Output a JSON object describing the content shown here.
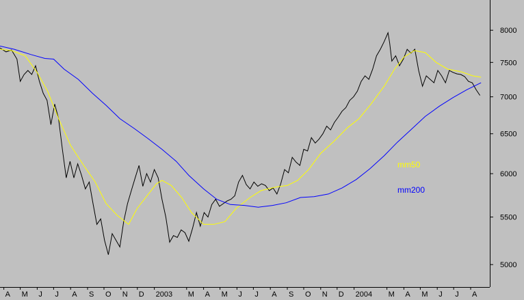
{
  "chart_data": {
    "type": "line",
    "title": "",
    "xlabel": "",
    "ylabel": "",
    "y_scale": "log",
    "ylim": [
      4780,
      8500
    ],
    "grid": false,
    "x_range": [
      "2002-03-25",
      "2004-09-05"
    ],
    "x_tick_labels": [
      {
        "label": "A",
        "date": "2002-04-01"
      },
      {
        "label": "M",
        "date": "2002-05-01"
      },
      {
        "label": "J",
        "date": "2002-06-01"
      },
      {
        "label": "J",
        "date": "2002-07-01"
      },
      {
        "label": "A",
        "date": "2002-08-01"
      },
      {
        "label": "S",
        "date": "2002-09-01"
      },
      {
        "label": "O",
        "date": "2002-10-01"
      },
      {
        "label": "N",
        "date": "2002-11-01"
      },
      {
        "label": "D",
        "date": "2002-12-01"
      },
      {
        "label": "2003",
        "date": "2003-01-01"
      },
      {
        "label": "M",
        "date": "2003-03-01"
      },
      {
        "label": "A",
        "date": "2003-04-01"
      },
      {
        "label": "M",
        "date": "2003-05-01"
      },
      {
        "label": "J",
        "date": "2003-06-01"
      },
      {
        "label": "J",
        "date": "2003-07-01"
      },
      {
        "label": "A",
        "date": "2003-08-01"
      },
      {
        "label": "S",
        "date": "2003-09-01"
      },
      {
        "label": "O",
        "date": "2003-10-01"
      },
      {
        "label": "N",
        "date": "2003-11-01"
      },
      {
        "label": "D",
        "date": "2003-12-01"
      },
      {
        "label": "2004",
        "date": "2004-01-01"
      },
      {
        "label": "M",
        "date": "2004-03-01"
      },
      {
        "label": "A",
        "date": "2004-04-01"
      },
      {
        "label": "M",
        "date": "2004-05-01"
      },
      {
        "label": "J",
        "date": "2004-06-01"
      },
      {
        "label": "J",
        "date": "2004-07-01"
      },
      {
        "label": "A",
        "date": "2004-08-01"
      }
    ],
    "y_ticks": [
      5000,
      5500,
      6000,
      6500,
      7000,
      7500,
      8000
    ],
    "series": [
      {
        "name": "",
        "color": "#000000",
        "points": [
          [
            "2002-03-25",
            7720
          ],
          [
            "2002-04-05",
            7660
          ],
          [
            "2002-04-15",
            7690
          ],
          [
            "2002-04-25",
            7550
          ],
          [
            "2002-05-01",
            7220
          ],
          [
            "2002-05-08",
            7320
          ],
          [
            "2002-05-15",
            7380
          ],
          [
            "2002-05-22",
            7320
          ],
          [
            "2002-05-29",
            7450
          ],
          [
            "2002-06-05",
            7220
          ],
          [
            "2002-06-12",
            7050
          ],
          [
            "2002-06-19",
            6950
          ],
          [
            "2002-06-26",
            6620
          ],
          [
            "2002-07-03",
            6900
          ],
          [
            "2002-07-10",
            6700
          ],
          [
            "2002-07-17",
            6300
          ],
          [
            "2002-07-24",
            5950
          ],
          [
            "2002-07-31",
            6150
          ],
          [
            "2002-08-07",
            5950
          ],
          [
            "2002-08-14",
            6120
          ],
          [
            "2002-08-21",
            5980
          ],
          [
            "2002-08-28",
            5820
          ],
          [
            "2002-09-04",
            5900
          ],
          [
            "2002-09-11",
            5650
          ],
          [
            "2002-09-18",
            5420
          ],
          [
            "2002-09-25",
            5480
          ],
          [
            "2002-10-02",
            5250
          ],
          [
            "2002-10-09",
            5100
          ],
          [
            "2002-10-16",
            5320
          ],
          [
            "2002-10-23",
            5250
          ],
          [
            "2002-10-30",
            5180
          ],
          [
            "2002-11-06",
            5450
          ],
          [
            "2002-11-13",
            5650
          ],
          [
            "2002-11-20",
            5800
          ],
          [
            "2002-11-27",
            5950
          ],
          [
            "2002-12-04",
            6100
          ],
          [
            "2002-12-11",
            5850
          ],
          [
            "2002-12-18",
            6000
          ],
          [
            "2002-12-25",
            5900
          ],
          [
            "2003-01-01",
            6050
          ],
          [
            "2003-01-08",
            5950
          ],
          [
            "2003-01-15",
            5700
          ],
          [
            "2003-01-22",
            5500
          ],
          [
            "2003-01-29",
            5230
          ],
          [
            "2003-02-05",
            5300
          ],
          [
            "2003-02-12",
            5280
          ],
          [
            "2003-02-19",
            5360
          ],
          [
            "2003-02-26",
            5330
          ],
          [
            "2003-03-05",
            5240
          ],
          [
            "2003-03-12",
            5380
          ],
          [
            "2003-03-19",
            5550
          ],
          [
            "2003-03-26",
            5400
          ],
          [
            "2003-04-02",
            5550
          ],
          [
            "2003-04-09",
            5500
          ],
          [
            "2003-04-16",
            5640
          ],
          [
            "2003-04-23",
            5700
          ],
          [
            "2003-04-30",
            5620
          ],
          [
            "2003-05-07",
            5650
          ],
          [
            "2003-05-14",
            5680
          ],
          [
            "2003-05-21",
            5700
          ],
          [
            "2003-05-28",
            5740
          ],
          [
            "2003-06-04",
            5900
          ],
          [
            "2003-06-11",
            5980
          ],
          [
            "2003-06-18",
            5870
          ],
          [
            "2003-06-25",
            5820
          ],
          [
            "2003-07-02",
            5900
          ],
          [
            "2003-07-09",
            5850
          ],
          [
            "2003-07-16",
            5880
          ],
          [
            "2003-07-23",
            5860
          ],
          [
            "2003-07-30",
            5800
          ],
          [
            "2003-08-06",
            5830
          ],
          [
            "2003-08-13",
            5760
          ],
          [
            "2003-08-20",
            5880
          ],
          [
            "2003-08-27",
            6050
          ],
          [
            "2003-09-03",
            6010
          ],
          [
            "2003-09-10",
            6200
          ],
          [
            "2003-09-17",
            6140
          ],
          [
            "2003-09-24",
            6100
          ],
          [
            "2003-10-01",
            6300
          ],
          [
            "2003-10-08",
            6280
          ],
          [
            "2003-10-15",
            6450
          ],
          [
            "2003-10-22",
            6380
          ],
          [
            "2003-10-29",
            6430
          ],
          [
            "2003-11-05",
            6500
          ],
          [
            "2003-11-12",
            6600
          ],
          [
            "2003-11-19",
            6550
          ],
          [
            "2003-11-26",
            6650
          ],
          [
            "2003-12-03",
            6720
          ],
          [
            "2003-12-10",
            6800
          ],
          [
            "2003-12-17",
            6850
          ],
          [
            "2003-12-24",
            6950
          ],
          [
            "2003-12-31",
            7000
          ],
          [
            "2004-01-07",
            7080
          ],
          [
            "2004-01-14",
            7220
          ],
          [
            "2004-01-21",
            7300
          ],
          [
            "2004-01-28",
            7250
          ],
          [
            "2004-02-04",
            7400
          ],
          [
            "2004-02-11",
            7600
          ],
          [
            "2004-02-18",
            7700
          ],
          [
            "2004-02-25",
            7820
          ],
          [
            "2004-03-03",
            7960
          ],
          [
            "2004-03-06",
            7800
          ],
          [
            "2004-03-10",
            7520
          ],
          [
            "2004-03-17",
            7600
          ],
          [
            "2004-03-24",
            7450
          ],
          [
            "2004-03-31",
            7550
          ],
          [
            "2004-04-07",
            7700
          ],
          [
            "2004-04-14",
            7640
          ],
          [
            "2004-04-21",
            7700
          ],
          [
            "2004-04-28",
            7380
          ],
          [
            "2004-05-05",
            7150
          ],
          [
            "2004-05-12",
            7300
          ],
          [
            "2004-05-19",
            7250
          ],
          [
            "2004-05-26",
            7200
          ],
          [
            "2004-06-02",
            7380
          ],
          [
            "2004-06-09",
            7300
          ],
          [
            "2004-06-16",
            7200
          ],
          [
            "2004-06-23",
            7380
          ],
          [
            "2004-06-30",
            7350
          ],
          [
            "2004-07-07",
            7330
          ],
          [
            "2004-07-14",
            7320
          ],
          [
            "2004-07-21",
            7290
          ],
          [
            "2004-07-28",
            7220
          ],
          [
            "2004-08-04",
            7200
          ],
          [
            "2004-08-11",
            7100
          ],
          [
            "2004-08-18",
            7020
          ]
        ]
      },
      {
        "name": "mm50",
        "color": "#ffff00",
        "points": [
          [
            "2002-03-25",
            7700
          ],
          [
            "2002-04-15",
            7680
          ],
          [
            "2002-05-10",
            7600
          ],
          [
            "2002-06-01",
            7350
          ],
          [
            "2002-06-20",
            7080
          ],
          [
            "2002-07-10",
            6700
          ],
          [
            "2002-08-01",
            6350
          ],
          [
            "2002-08-25",
            6100
          ],
          [
            "2002-09-15",
            5900
          ],
          [
            "2002-10-05",
            5650
          ],
          [
            "2002-10-25",
            5520
          ],
          [
            "2002-11-15",
            5420
          ],
          [
            "2002-12-01",
            5600
          ],
          [
            "2002-12-20",
            5750
          ],
          [
            "2003-01-05",
            5880
          ],
          [
            "2003-01-15",
            5920
          ],
          [
            "2003-02-01",
            5860
          ],
          [
            "2003-02-20",
            5720
          ],
          [
            "2003-03-10",
            5550
          ],
          [
            "2003-04-01",
            5420
          ],
          [
            "2003-04-20",
            5420
          ],
          [
            "2003-05-10",
            5450
          ],
          [
            "2003-05-31",
            5600
          ],
          [
            "2003-06-25",
            5720
          ],
          [
            "2003-07-15",
            5800
          ],
          [
            "2003-08-10",
            5840
          ],
          [
            "2003-09-01",
            5860
          ],
          [
            "2003-09-20",
            5920
          ],
          [
            "2003-10-10",
            6050
          ],
          [
            "2003-11-01",
            6250
          ],
          [
            "2003-11-25",
            6400
          ],
          [
            "2003-12-20",
            6580
          ],
          [
            "2004-01-10",
            6700
          ],
          [
            "2004-02-01",
            6900
          ],
          [
            "2004-02-25",
            7150
          ],
          [
            "2004-03-15",
            7400
          ],
          [
            "2004-04-01",
            7580
          ],
          [
            "2004-04-20",
            7680
          ],
          [
            "2004-05-10",
            7650
          ],
          [
            "2004-05-30",
            7500
          ],
          [
            "2004-06-20",
            7400
          ],
          [
            "2004-07-15",
            7360
          ],
          [
            "2004-08-05",
            7300
          ],
          [
            "2004-08-20",
            7280
          ]
        ]
      },
      {
        "name": "mm200",
        "color": "#0000ff",
        "points": [
          [
            "2002-03-25",
            7750
          ],
          [
            "2002-04-20",
            7700
          ],
          [
            "2002-05-20",
            7620
          ],
          [
            "2002-06-15",
            7560
          ],
          [
            "2002-07-01",
            7550
          ],
          [
            "2002-07-20",
            7400
          ],
          [
            "2002-08-15",
            7250
          ],
          [
            "2002-09-10",
            7050
          ],
          [
            "2002-10-05",
            6880
          ],
          [
            "2002-10-30",
            6700
          ],
          [
            "2002-11-25",
            6570
          ],
          [
            "2002-12-20",
            6440
          ],
          [
            "2003-01-15",
            6300
          ],
          [
            "2003-02-10",
            6150
          ],
          [
            "2003-03-05",
            5980
          ],
          [
            "2003-04-01",
            5820
          ],
          [
            "2003-04-25",
            5700
          ],
          [
            "2003-05-20",
            5640
          ],
          [
            "2003-06-15",
            5630
          ],
          [
            "2003-07-10",
            5610
          ],
          [
            "2003-08-05",
            5630
          ],
          [
            "2003-08-30",
            5660
          ],
          [
            "2003-09-25",
            5720
          ],
          [
            "2003-10-20",
            5730
          ],
          [
            "2003-11-15",
            5760
          ],
          [
            "2003-12-10",
            5830
          ],
          [
            "2004-01-05",
            5930
          ],
          [
            "2004-01-30",
            6060
          ],
          [
            "2004-02-25",
            6220
          ],
          [
            "2004-03-20",
            6390
          ],
          [
            "2004-04-15",
            6560
          ],
          [
            "2004-05-10",
            6730
          ],
          [
            "2004-06-05",
            6870
          ],
          [
            "2004-06-30",
            6990
          ],
          [
            "2004-07-25",
            7100
          ],
          [
            "2004-08-20",
            7200
          ]
        ]
      }
    ]
  }
}
